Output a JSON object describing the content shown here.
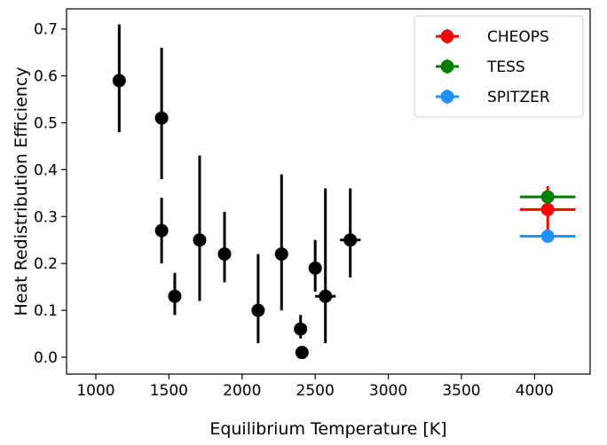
{
  "chart_data": {
    "type": "scatter",
    "xlabel": "Equilibrium Temperature [K]",
    "ylabel": "Heat Redistribution Efficiency",
    "xlim": [
      800,
      4380
    ],
    "ylim": [
      -0.036,
      0.743
    ],
    "xticks": [
      1000,
      1500,
      2000,
      2500,
      3000,
      3500,
      4000
    ],
    "yticks": [
      {
        "value": 0,
        "label": "0.0"
      },
      0.1,
      0.2,
      0.3,
      0.4,
      0.5,
      0.6,
      0.7
    ],
    "legend": "upper right",
    "series": [
      {
        "color": "#000000",
        "x": [
          1160,
          1450,
          1450,
          1540,
          1710,
          1880,
          2110,
          2270,
          2400,
          2410,
          2500,
          2570,
          2740
        ],
        "values": [
          0.59,
          0.51,
          0.27,
          0.13,
          0.25,
          0.22,
          0.1,
          0.22,
          0.06,
          0.01,
          0.19,
          0.13,
          0.25
        ],
        "yerr_minus": [
          0.11,
          0.13,
          0.07,
          0.04,
          0.13,
          0.06,
          0.07,
          0.12,
          0.02,
          0.01,
          0.05,
          0.1,
          0.08
        ],
        "yerr_plus": [
          0.12,
          0.15,
          0.07,
          0.05,
          0.18,
          0.09,
          0.12,
          0.17,
          0.03,
          0.01,
          0.06,
          0.23,
          0.11
        ],
        "xerr": [
          0,
          0,
          0,
          0,
          0,
          0,
          0,
          0,
          0,
          0,
          40,
          70,
          70
        ]
      },
      {
        "name": "CHEOPS",
        "color": "#ff0000",
        "x": [
          4090
        ],
        "values": [
          0.315
        ],
        "yerr_minus": [
          0.05
        ],
        "yerr_plus": [
          0.05
        ],
        "xerr": [
          190
        ]
      },
      {
        "name": "TESS",
        "color": "#008000",
        "x": [
          4090
        ],
        "values": [
          0.342
        ],
        "yerr_minus": [
          0.01
        ],
        "yerr_plus": [
          0.01
        ],
        "xerr": [
          190
        ]
      },
      {
        "name": "SPITZER",
        "color": "#1e90ff",
        "x": [
          4090
        ],
        "values": [
          0.258
        ],
        "yerr_minus": [
          0.005
        ],
        "yerr_plus": [
          0.005
        ],
        "xerr": [
          190
        ]
      }
    ]
  }
}
